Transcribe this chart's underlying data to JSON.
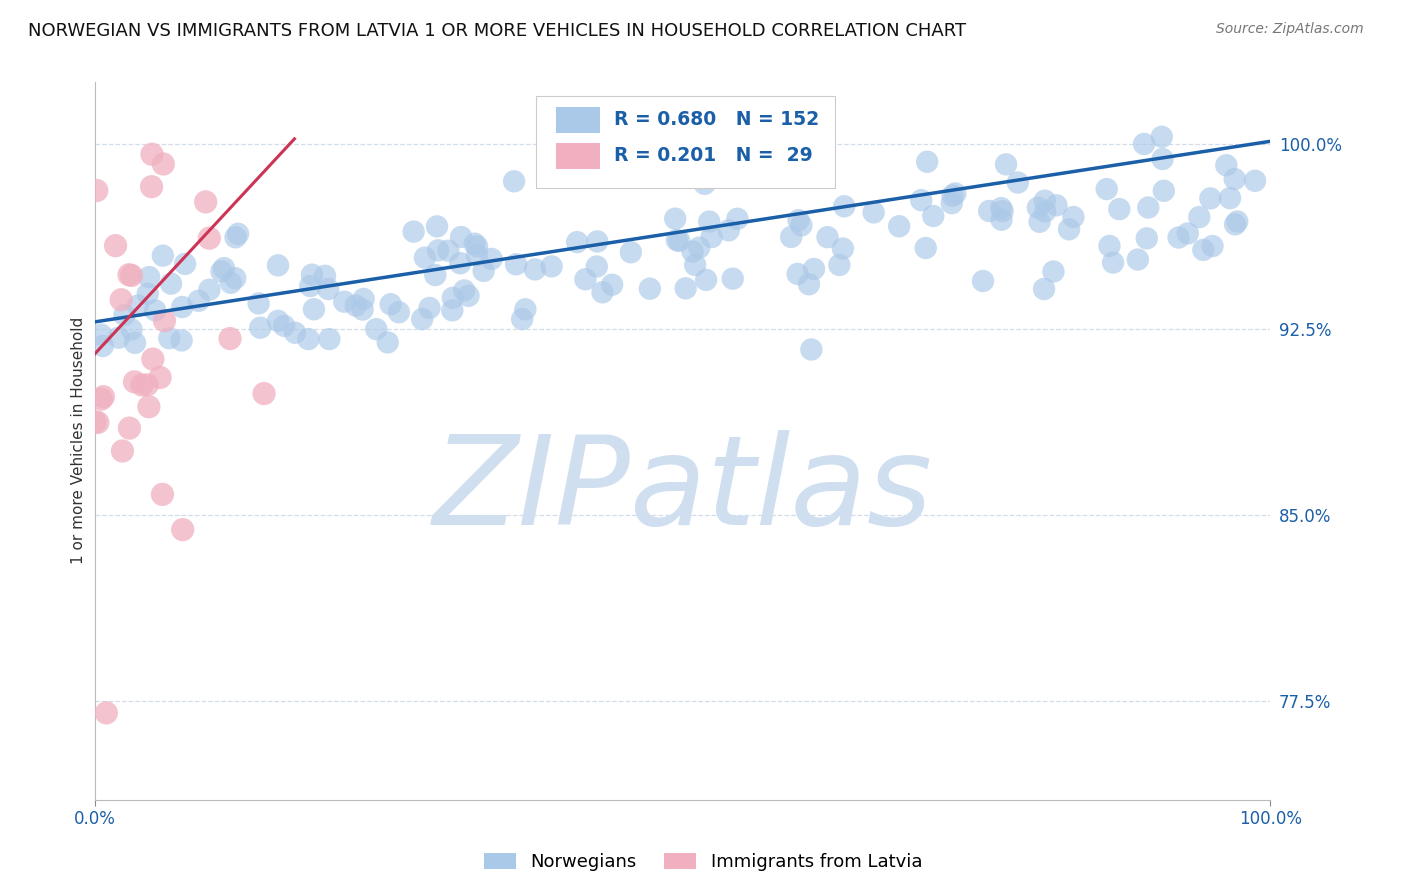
{
  "title": "NORWEGIAN VS IMMIGRANTS FROM LATVIA 1 OR MORE VEHICLES IN HOUSEHOLD CORRELATION CHART",
  "source_text": "Source: ZipAtlas.com",
  "ylabel": "1 or more Vehicles in Household",
  "xlim": [
    0.0,
    1.0
  ],
  "ylim": [
    0.735,
    1.025
  ],
  "xticklabels": [
    "0.0%",
    "100.0%"
  ],
  "yticklabels": [
    "77.5%",
    "85.0%",
    "92.5%",
    "100.0%"
  ],
  "yticks": [
    0.775,
    0.85,
    0.925,
    1.0
  ],
  "blue_R": 0.68,
  "blue_N": 152,
  "pink_R": 0.201,
  "pink_N": 29,
  "blue_color": "#aac8e8",
  "pink_color": "#f0b0c0",
  "blue_line_color": "#1a5fa8",
  "pink_line_color": "#cc3355",
  "legend_blue_label": "Norwegians",
  "legend_pink_label": "Immigrants from Latvia",
  "watermark": "ZIPatlas",
  "watermark_color": "#d0dff0",
  "background_color": "#ffffff",
  "grid_color": "#c8d4e4",
  "title_color": "#111111",
  "title_fontsize": 13,
  "axis_tick_color_blue": "#1a5fa8",
  "axis_tick_color_x": "#1a5fa8"
}
